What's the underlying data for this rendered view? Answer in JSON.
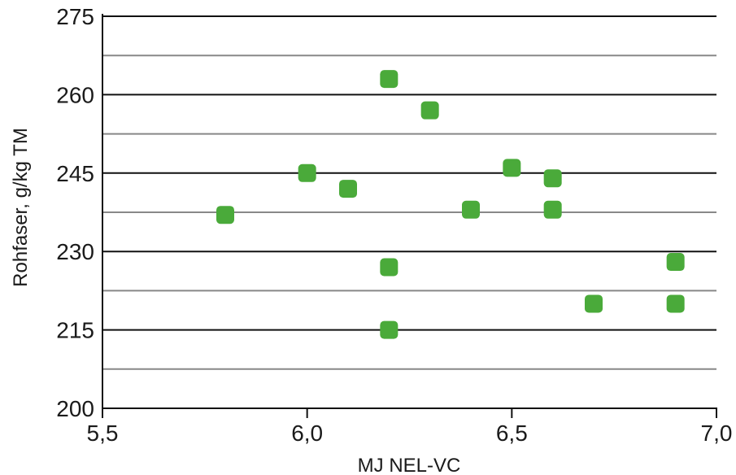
{
  "chart_data": {
    "type": "scatter",
    "xlabel": "MJ NEL-VC",
    "ylabel": "Rohfaser, g/kg TM",
    "xlim": [
      5.5,
      7.0
    ],
    "ylim": [
      200,
      275
    ],
    "x_ticks": [
      5.5,
      6.0,
      6.5,
      7.0
    ],
    "x_tick_labels": [
      "5,5",
      "6,0",
      "6,5",
      "7,0"
    ],
    "y_ticks": [
      200,
      215,
      230,
      245,
      260,
      275
    ],
    "y_tick_labels": [
      "200",
      "215",
      "230",
      "245",
      "260",
      "275"
    ],
    "grid": true,
    "marker_color": "#4aaa3a",
    "major_grid_color": "#111111",
    "minor_grid_color": "#888888",
    "points": [
      {
        "x": 5.8,
        "y": 237
      },
      {
        "x": 6.0,
        "y": 245
      },
      {
        "x": 6.1,
        "y": 242
      },
      {
        "x": 6.2,
        "y": 263
      },
      {
        "x": 6.2,
        "y": 227
      },
      {
        "x": 6.2,
        "y": 215
      },
      {
        "x": 6.3,
        "y": 257
      },
      {
        "x": 6.4,
        "y": 238
      },
      {
        "x": 6.5,
        "y": 246
      },
      {
        "x": 6.6,
        "y": 244
      },
      {
        "x": 6.6,
        "y": 238
      },
      {
        "x": 6.7,
        "y": 220
      },
      {
        "x": 6.9,
        "y": 228
      },
      {
        "x": 6.9,
        "y": 220
      }
    ]
  }
}
